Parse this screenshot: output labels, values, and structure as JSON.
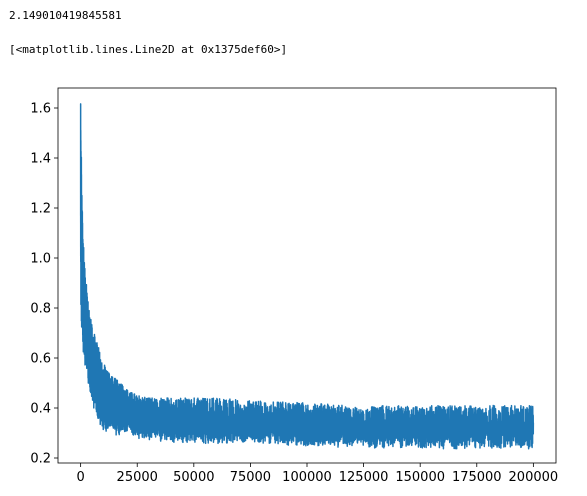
{
  "cell_output": {
    "printed_value": "2.149010419845581",
    "repr_line": "[<matplotlib.lines.Line2D at 0x1375def60>]"
  },
  "chart_data": {
    "type": "line",
    "title": "",
    "xlabel": "",
    "ylabel": "",
    "xlim": [
      -10000,
      210000
    ],
    "ylim": [
      0.18,
      1.68
    ],
    "x_ticks": [
      0,
      25000,
      50000,
      75000,
      100000,
      125000,
      150000,
      175000,
      200000
    ],
    "y_ticks": [
      0.2,
      0.4,
      0.6,
      0.8,
      1.0,
      1.2,
      1.4,
      1.6
    ],
    "y_tick_labels": [
      "0.2",
      "0.4",
      "0.6",
      "0.8",
      "1.0",
      "1.2",
      "1.4",
      "1.6"
    ],
    "grid": false,
    "legend": "none",
    "line_color": "#1f77b4",
    "series": [
      {
        "x": [
          0,
          500,
          1000,
          2000,
          3000,
          5000,
          7500,
          10000,
          15000,
          20000,
          25000,
          30000,
          40000,
          50000,
          60000,
          75000,
          100000,
          125000,
          150000,
          175000,
          200000
        ],
        "y_mean": [
          1.2,
          1.0,
          0.85,
          0.72,
          0.64,
          0.56,
          0.49,
          0.44,
          0.405,
          0.385,
          0.37,
          0.36,
          0.35,
          0.345,
          0.34,
          0.335,
          0.325,
          0.32,
          0.32,
          0.318,
          0.315
        ],
        "y_min": [
          0.8,
          0.7,
          0.63,
          0.56,
          0.5,
          0.42,
          0.35,
          0.31,
          0.29,
          0.28,
          0.27,
          0.27,
          0.26,
          0.26,
          0.255,
          0.255,
          0.245,
          0.24,
          0.235,
          0.235,
          0.235
        ],
        "y_max": [
          1.62,
          1.28,
          1.1,
          0.95,
          0.85,
          0.74,
          0.66,
          0.58,
          0.52,
          0.48,
          0.45,
          0.44,
          0.44,
          0.44,
          0.44,
          0.43,
          0.42,
          0.41,
          0.41,
          0.41,
          0.41
        ]
      }
    ]
  }
}
